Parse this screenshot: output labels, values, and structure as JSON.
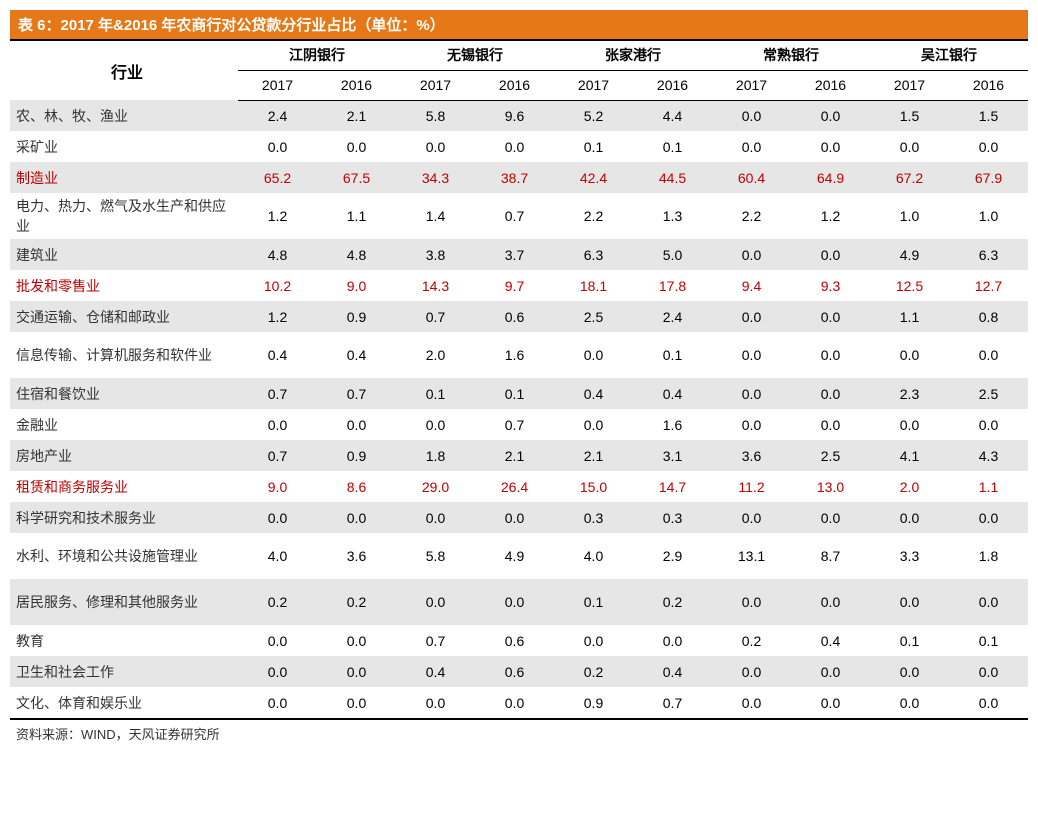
{
  "title": "表 6：2017 年&2016 年农商行对公贷款分行业占比（单位：%）",
  "industry_header": "行业",
  "banks": [
    "江阴银行",
    "无锡银行",
    "张家港行",
    "常熟银行",
    "吴江银行"
  ],
  "years": [
    "2017",
    "2016"
  ],
  "source": "资料来源：WIND，天风证券研究所",
  "rows": [
    {
      "label": "农、林、牧、渔业",
      "hl": false,
      "tall": false,
      "v": [
        "2.4",
        "2.1",
        "5.8",
        "9.6",
        "5.2",
        "4.4",
        "0.0",
        "0.0",
        "1.5",
        "1.5"
      ]
    },
    {
      "label": "采矿业",
      "hl": false,
      "tall": false,
      "v": [
        "0.0",
        "0.0",
        "0.0",
        "0.0",
        "0.1",
        "0.1",
        "0.0",
        "0.0",
        "0.0",
        "0.0"
      ]
    },
    {
      "label": "制造业",
      "hl": true,
      "tall": false,
      "v": [
        "65.2",
        "67.5",
        "34.3",
        "38.7",
        "42.4",
        "44.5",
        "60.4",
        "64.9",
        "67.2",
        "67.9"
      ]
    },
    {
      "label": "电力、热力、燃气及水生产和供应业",
      "hl": false,
      "tall": true,
      "v": [
        "1.2",
        "1.1",
        "1.4",
        "0.7",
        "2.2",
        "1.3",
        "2.2",
        "1.2",
        "1.0",
        "1.0"
      ]
    },
    {
      "label": "建筑业",
      "hl": false,
      "tall": false,
      "v": [
        "4.8",
        "4.8",
        "3.8",
        "3.7",
        "6.3",
        "5.0",
        "0.0",
        "0.0",
        "4.9",
        "6.3"
      ]
    },
    {
      "label": "批发和零售业",
      "hl": true,
      "tall": false,
      "v": [
        "10.2",
        "9.0",
        "14.3",
        "9.7",
        "18.1",
        "17.8",
        "9.4",
        "9.3",
        "12.5",
        "12.7"
      ]
    },
    {
      "label": "交通运输、仓储和邮政业",
      "hl": false,
      "tall": false,
      "v": [
        "1.2",
        "0.9",
        "0.7",
        "0.6",
        "2.5",
        "2.4",
        "0.0",
        "0.0",
        "1.1",
        "0.8"
      ]
    },
    {
      "label": "信息传输、计算机服务和软件业",
      "hl": false,
      "tall": true,
      "v": [
        "0.4",
        "0.4",
        "2.0",
        "1.6",
        "0.0",
        "0.1",
        "0.0",
        "0.0",
        "0.0",
        "0.0"
      ]
    },
    {
      "label": "住宿和餐饮业",
      "hl": false,
      "tall": false,
      "v": [
        "0.7",
        "0.7",
        "0.1",
        "0.1",
        "0.4",
        "0.4",
        "0.0",
        "0.0",
        "2.3",
        "2.5"
      ]
    },
    {
      "label": "金融业",
      "hl": false,
      "tall": false,
      "v": [
        "0.0",
        "0.0",
        "0.0",
        "0.7",
        "0.0",
        "1.6",
        "0.0",
        "0.0",
        "0.0",
        "0.0"
      ]
    },
    {
      "label": "房地产业",
      "hl": false,
      "tall": false,
      "v": [
        "0.7",
        "0.9",
        "1.8",
        "2.1",
        "2.1",
        "3.1",
        "3.6",
        "2.5",
        "4.1",
        "4.3"
      ]
    },
    {
      "label": "租赁和商务服务业",
      "hl": true,
      "tall": false,
      "v": [
        "9.0",
        "8.6",
        "29.0",
        "26.4",
        "15.0",
        "14.7",
        "11.2",
        "13.0",
        "2.0",
        "1.1"
      ]
    },
    {
      "label": "科学研究和技术服务业",
      "hl": false,
      "tall": false,
      "v": [
        "0.0",
        "0.0",
        "0.0",
        "0.0",
        "0.3",
        "0.3",
        "0.0",
        "0.0",
        "0.0",
        "0.0"
      ]
    },
    {
      "label": "水利、环境和公共设施管理业",
      "hl": false,
      "tall": true,
      "v": [
        "4.0",
        "3.6",
        "5.8",
        "4.9",
        "4.0",
        "2.9",
        "13.1",
        "8.7",
        "3.3",
        "1.8"
      ]
    },
    {
      "label": "居民服务、修理和其他服务业",
      "hl": false,
      "tall": true,
      "v": [
        "0.2",
        "0.2",
        "0.0",
        "0.0",
        "0.1",
        "0.2",
        "0.0",
        "0.0",
        "0.0",
        "0.0"
      ]
    },
    {
      "label": "教育",
      "hl": false,
      "tall": false,
      "v": [
        "0.0",
        "0.0",
        "0.7",
        "0.6",
        "0.0",
        "0.0",
        "0.2",
        "0.4",
        "0.1",
        "0.1"
      ]
    },
    {
      "label": "卫生和社会工作",
      "hl": false,
      "tall": false,
      "v": [
        "0.0",
        "0.0",
        "0.4",
        "0.6",
        "0.2",
        "0.4",
        "0.0",
        "0.0",
        "0.0",
        "0.0"
      ]
    },
    {
      "label": "文化、体育和娱乐业",
      "hl": false,
      "tall": false,
      "v": [
        "0.0",
        "0.0",
        "0.0",
        "0.0",
        "0.9",
        "0.7",
        "0.0",
        "0.0",
        "0.0",
        "0.0"
      ]
    }
  ]
}
